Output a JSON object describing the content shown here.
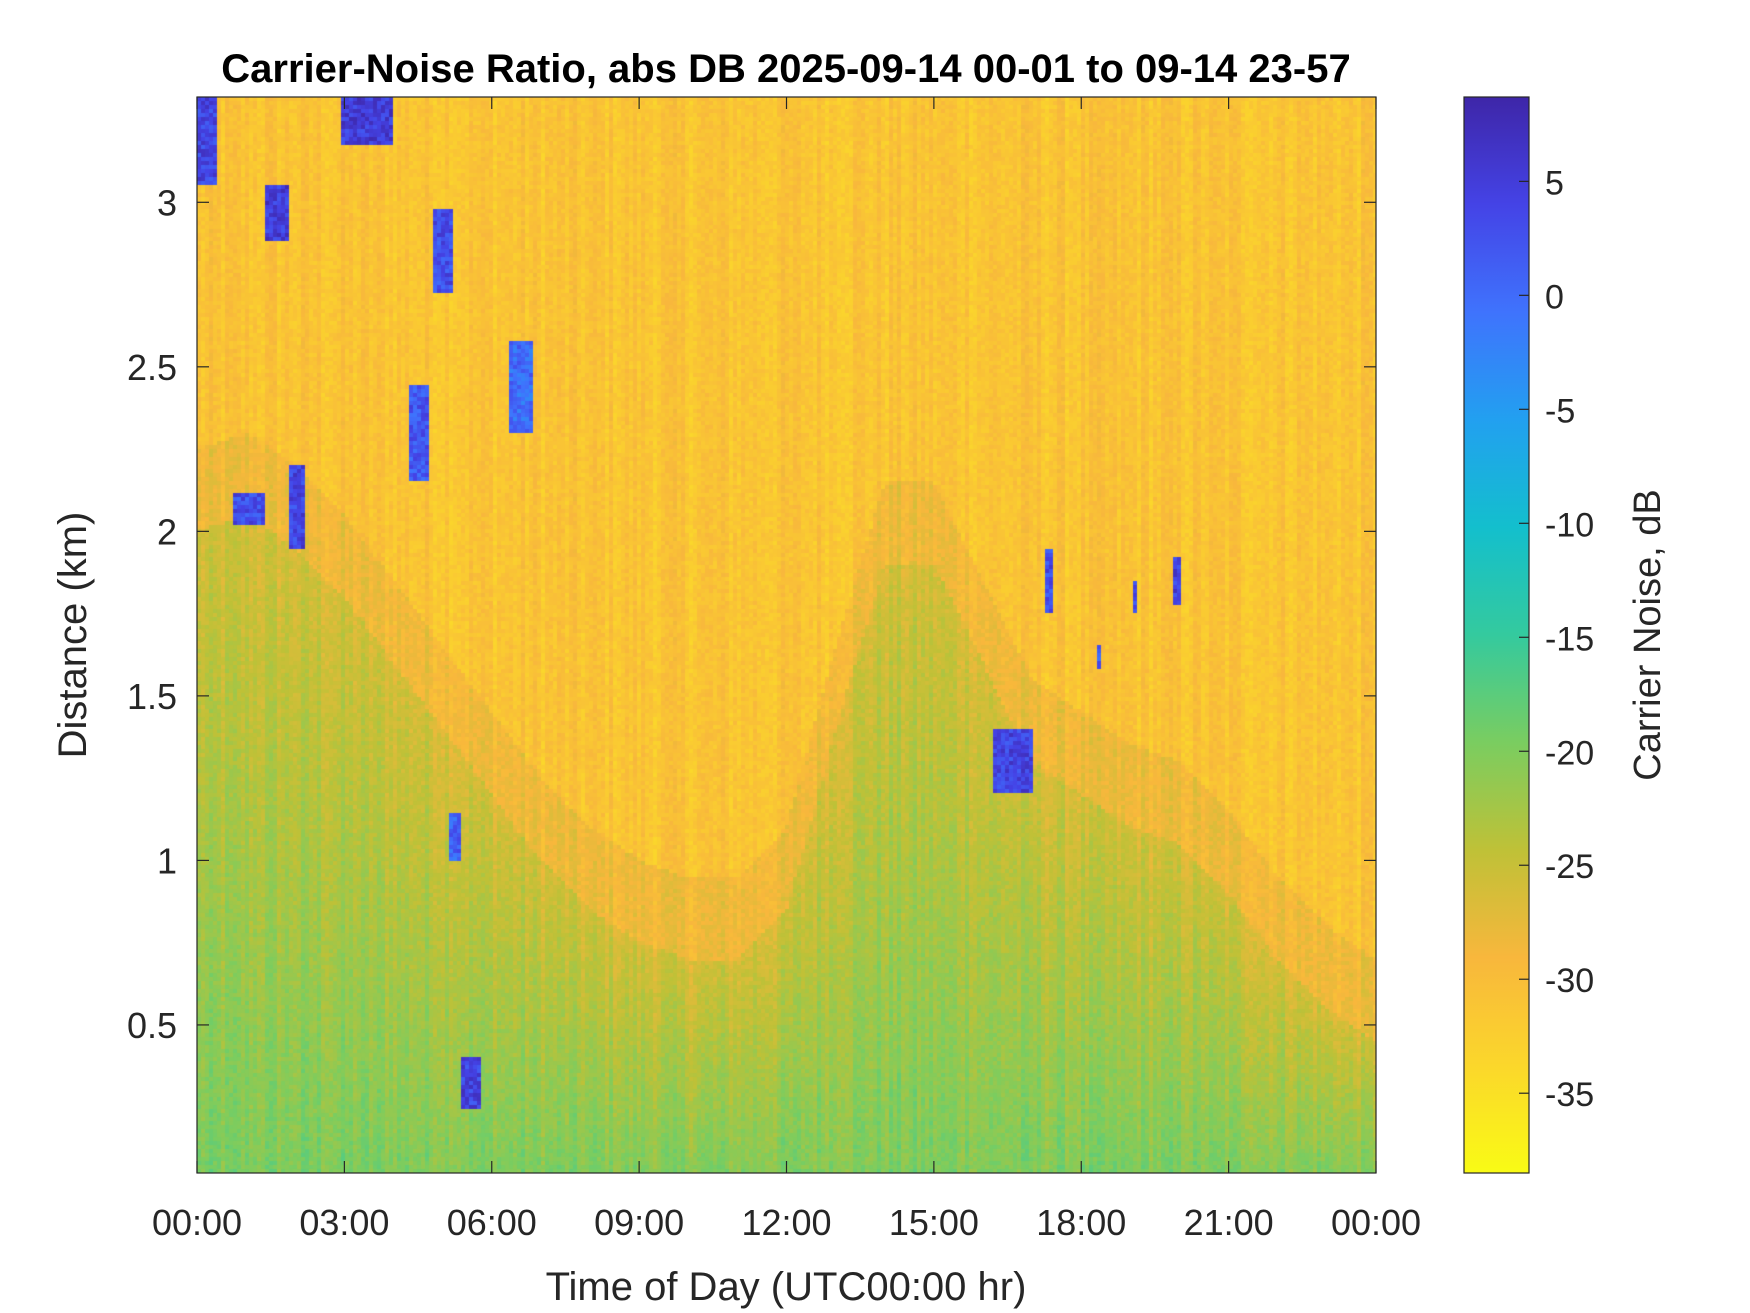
{
  "chart_data": {
    "type": "heatmap",
    "title": "Carrier-Noise Ratio, abs DB 2025-09-14 00-01 to 09-14 23-57",
    "xlabel": "Time of Day (UTC00:00 hr)",
    "ylabel": "Distance (km)",
    "colorbar_label": "Carrier Noise, dB",
    "x_unit": "hours",
    "xlim": [
      0,
      24
    ],
    "ylim": [
      0.05,
      3.32
    ],
    "clim": [
      -38.5,
      8.7
    ],
    "x_ticks": [
      0,
      3,
      6,
      9,
      12,
      15,
      18,
      21,
      24
    ],
    "x_tick_labels": [
      "00:00",
      "03:00",
      "06:00",
      "09:00",
      "12:00",
      "15:00",
      "18:00",
      "21:00",
      "00:00"
    ],
    "y_ticks": [
      0.5,
      1,
      1.5,
      2,
      2.5,
      3
    ],
    "y_tick_labels": [
      "0.5",
      "1",
      "1.5",
      "2",
      "2.5",
      "3"
    ],
    "colorbar_ticks": [
      5,
      0,
      -5,
      -10,
      -15,
      -20,
      -25,
      -30,
      -35
    ],
    "colorbar_tick_labels": [
      "5",
      "0",
      "-5",
      "-10",
      "-15",
      "-20",
      "-25",
      "-30",
      "-35"
    ],
    "colormap": "parula",
    "colormap_colors": [
      "#3e26a8",
      "#4443e6",
      "#3f73fd",
      "#22a0f0",
      "#13bfcd",
      "#34ca9e",
      "#7acd60",
      "#bfc137",
      "#f8b73c",
      "#fbd72b",
      "#f9fb15"
    ],
    "background_value_db": -31,
    "boundary_layer_top_km": [
      [
        0,
        2.0
      ],
      [
        1,
        2.05
      ],
      [
        2,
        1.95
      ],
      [
        3,
        1.8
      ],
      [
        4,
        1.6
      ],
      [
        5,
        1.4
      ],
      [
        6,
        1.2
      ],
      [
        7,
        1.0
      ],
      [
        8,
        0.85
      ],
      [
        9,
        0.75
      ],
      [
        10,
        0.7
      ],
      [
        11,
        0.7
      ],
      [
        12,
        0.85
      ],
      [
        13,
        1.4
      ],
      [
        14,
        1.9
      ],
      [
        15,
        1.9
      ],
      [
        16,
        1.6
      ],
      [
        17,
        1.3
      ],
      [
        18,
        1.2
      ],
      [
        19,
        1.1
      ],
      [
        20,
        1.05
      ],
      [
        21,
        0.9
      ],
      [
        22,
        0.7
      ],
      [
        23,
        0.55
      ],
      [
        24,
        0.45
      ]
    ],
    "features": [
      {
        "x_range": [
          0.0,
          0.4
        ],
        "y_range": [
          3.05,
          3.32
        ],
        "value_db": 4
      },
      {
        "x_range": [
          1.4,
          1.9
        ],
        "y_range": [
          2.88,
          3.05
        ],
        "value_db": 5
      },
      {
        "x_range": [
          2.9,
          4.0
        ],
        "y_range": [
          3.18,
          3.32
        ],
        "value_db": 5
      },
      {
        "x_range": [
          4.8,
          5.2
        ],
        "y_range": [
          2.72,
          2.98
        ],
        "value_db": 3
      },
      {
        "x_range": [
          6.35,
          6.8
        ],
        "y_range": [
          2.3,
          2.58
        ],
        "value_db": 0
      },
      {
        "x_range": [
          4.35,
          4.75
        ],
        "y_range": [
          2.15,
          2.45
        ],
        "value_db": 2
      },
      {
        "x_range": [
          0.7,
          1.4
        ],
        "y_range": [
          2.02,
          2.12
        ],
        "value_db": 3
      },
      {
        "x_range": [
          1.9,
          2.2
        ],
        "y_range": [
          1.95,
          2.2
        ],
        "value_db": 4
      },
      {
        "x_range": [
          5.15,
          5.35
        ],
        "y_range": [
          1.0,
          1.15
        ],
        "value_db": 1
      },
      {
        "x_range": [
          5.35,
          5.75
        ],
        "y_range": [
          0.25,
          0.4
        ],
        "value_db": 4
      },
      {
        "x_range": [
          16.2,
          17.0
        ],
        "y_range": [
          1.2,
          1.4
        ],
        "value_db": 4
      },
      {
        "x_range": [
          17.3,
          17.45
        ],
        "y_range": [
          1.75,
          1.95
        ],
        "value_db": 3
      },
      {
        "x_range": [
          19.05,
          19.15
        ],
        "y_range": [
          1.75,
          1.85
        ],
        "value_db": 4
      },
      {
        "x_range": [
          19.9,
          20.05
        ],
        "y_range": [
          1.78,
          1.92
        ],
        "value_db": 4
      },
      {
        "x_range": [
          18.3,
          18.4
        ],
        "y_range": [
          1.58,
          1.65
        ],
        "value_db": 2
      }
    ]
  }
}
